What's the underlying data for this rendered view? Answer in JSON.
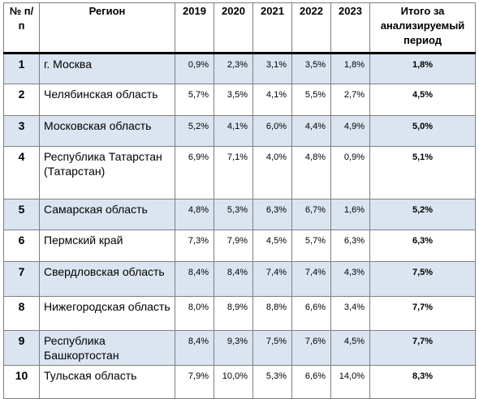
{
  "header": {
    "num": "№ п/п",
    "region": "Регион",
    "y2019": "2019",
    "y2020": "2020",
    "y2021": "2021",
    "y2022": "2022",
    "y2023": "2023",
    "total": "Итого за анализируемый период"
  },
  "rows": [
    {
      "num": "1",
      "region": "г. Москва",
      "v2019": "0,9%",
      "v2020": "2,3%",
      "v2021": "3,1%",
      "v2022": "3,5%",
      "v2023": "1,8%",
      "total": "1,8%"
    },
    {
      "num": "2",
      "region": "Челябинская область",
      "v2019": "5,7%",
      "v2020": "3,5%",
      "v2021": "4,1%",
      "v2022": "5,5%",
      "v2023": "2,7%",
      "total": "4,5%"
    },
    {
      "num": "3",
      "region": "Московская область",
      "v2019": "5,2%",
      "v2020": "4,1%",
      "v2021": "6,0%",
      "v2022": "4,4%",
      "v2023": "4,9%",
      "total": "5,0%"
    },
    {
      "num": "4",
      "region": "Республика Татарстан (Татарстан)",
      "v2019": "6,9%",
      "v2020": "7,1%",
      "v2021": "4,0%",
      "v2022": "4,8%",
      "v2023": "0,9%",
      "total": "5,1%"
    },
    {
      "num": "5",
      "region": "Самарская область",
      "v2019": "4,8%",
      "v2020": "5,3%",
      "v2021": "6,3%",
      "v2022": "6,7%",
      "v2023": "1,6%",
      "total": "5,2%"
    },
    {
      "num": "6",
      "region": "Пермский край",
      "v2019": "7,3%",
      "v2020": "7,9%",
      "v2021": "4,5%",
      "v2022": "5,7%",
      "v2023": "6,3%",
      "total": "6,3%"
    },
    {
      "num": "7",
      "region": "Свердловская область",
      "v2019": "8,4%",
      "v2020": "8,4%",
      "v2021": "7,4%",
      "v2022": "7,4%",
      "v2023": "4,3%",
      "total": "7,5%"
    },
    {
      "num": "8",
      "region": "Нижегородская область",
      "v2019": "8,0%",
      "v2020": "8,9%",
      "v2021": "8,8%",
      "v2022": "6,6%",
      "v2023": "3,4%",
      "total": "7,7%"
    },
    {
      "num": "9",
      "region": "Республика Башкортостан",
      "v2019": "8,4%",
      "v2020": "9,3%",
      "v2021": "7,5%",
      "v2022": "7,6%",
      "v2023": "4,5%",
      "total": "7,7%"
    },
    {
      "num": "10",
      "region": "Тульская область",
      "v2019": "7,9%",
      "v2020": "10,0%",
      "v2021": "5,3%",
      "v2022": "6,6%",
      "v2023": "14,0%",
      "total": "8,3%"
    }
  ],
  "colors": {
    "shade": "#dbe5f1",
    "border": "#7f7f7f"
  }
}
